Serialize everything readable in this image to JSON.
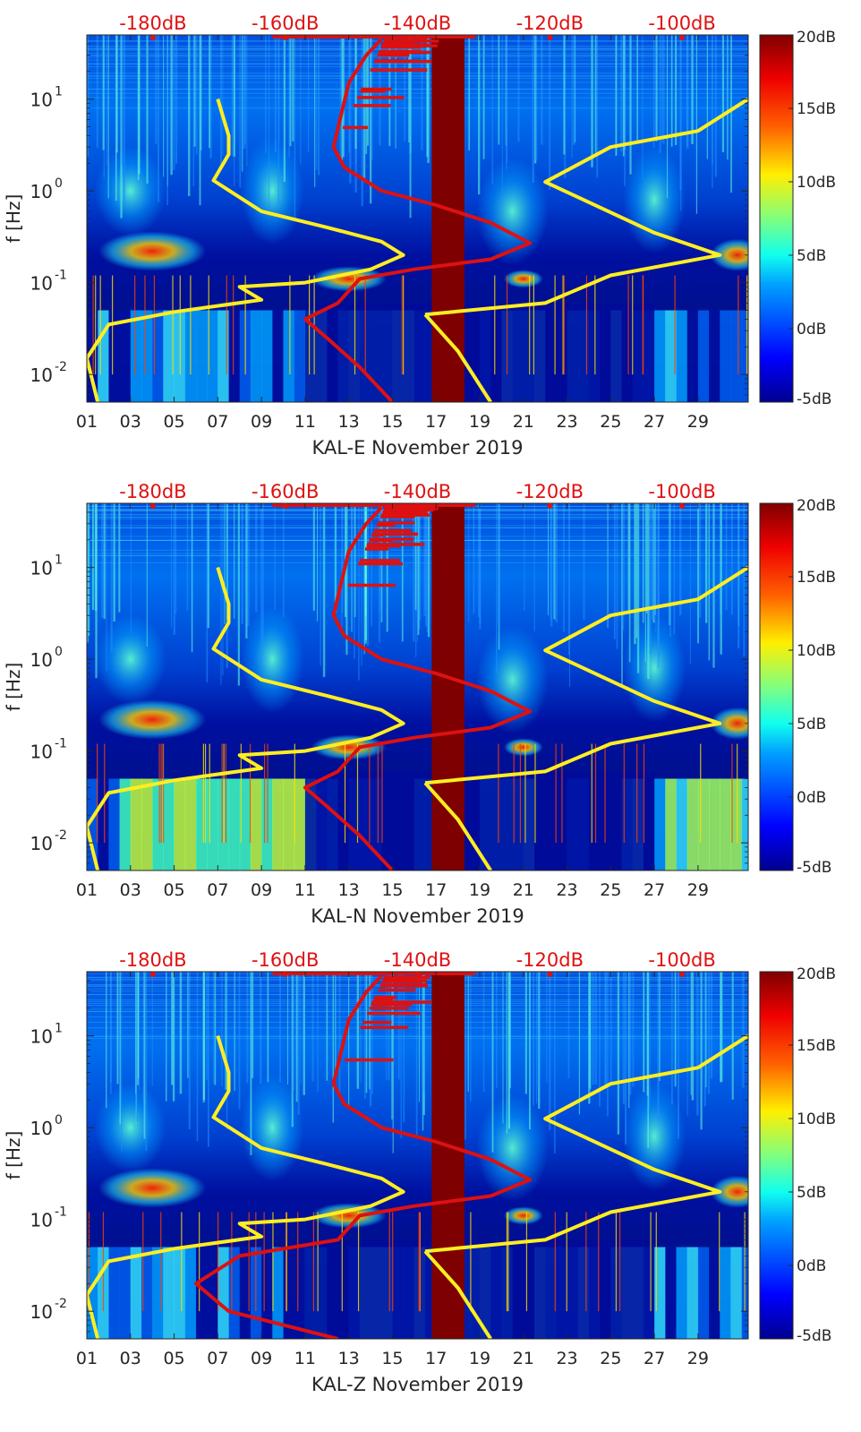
{
  "colors": {
    "red_axis": "#e01010",
    "yellow_curve": "#ffee22",
    "red_curve": "#dd1111",
    "maroon_band": "#7f0000",
    "colormap": [
      "#00008f",
      "#0000ff",
      "#00a0ff",
      "#10ffef",
      "#80ff7f",
      "#ffef00",
      "#ff6000",
      "#ef0000",
      "#800000"
    ]
  },
  "top_axis_ticks": [
    "-180dB",
    "-160dB",
    "-140dB",
    "-120dB",
    "-100dB"
  ],
  "x_ticks": [
    "01",
    "03",
    "05",
    "07",
    "09",
    "11",
    "13",
    "15",
    "17",
    "19",
    "21",
    "23",
    "25",
    "27",
    "29"
  ],
  "y_tick_bases": [
    "10",
    "10",
    "10",
    "10"
  ],
  "y_tick_exps": [
    "1",
    "0",
    "-1",
    "-2"
  ],
  "ylabel": "f [Hz]",
  "colorbar_ticks": [
    "20dB",
    "15dB",
    "10dB",
    "5dB",
    "0dB",
    "-5dB"
  ],
  "panels": [
    {
      "xlabel": "KAL-E November 2019"
    },
    {
      "xlabel": "KAL-N November 2019"
    },
    {
      "xlabel": "KAL-Z November 2019"
    }
  ],
  "chart_data": {
    "type": "heatmap",
    "description_axes": {
      "x_range_days": [
        1,
        31.3
      ],
      "y_range_hz": [
        0.005,
        50
      ],
      "y_scale": "log",
      "colorbar_range_db": [
        -5,
        20
      ],
      "top_axis_range_db": [
        -190,
        -90
      ]
    },
    "gap_band_days": [
      16.8,
      18.3
    ],
    "yellow_curve_1": [
      [
        7.0,
        10
      ],
      [
        7.5,
        4
      ],
      [
        7.5,
        2.5
      ],
      [
        6.8,
        1.3
      ],
      [
        9.0,
        0.6
      ],
      [
        12.0,
        0.4
      ],
      [
        14.5,
        0.28
      ],
      [
        15.5,
        0.2
      ],
      [
        14.0,
        0.14
      ],
      [
        11.0,
        0.1
      ],
      [
        8.0,
        0.09
      ],
      [
        9.0,
        0.065
      ],
      [
        5.0,
        0.048
      ],
      [
        2.0,
        0.035
      ],
      [
        1.0,
        0.015
      ],
      [
        1.5,
        0.005
      ]
    ],
    "yellow_curve_2": [
      [
        16.5,
        0.045
      ],
      [
        18.0,
        0.018
      ],
      [
        19.5,
        0.005
      ]
    ],
    "yellow_curve_3": [
      [
        16.5,
        0.045
      ],
      [
        22.0,
        0.06
      ],
      [
        25.0,
        0.12
      ],
      [
        30.0,
        0.2
      ],
      [
        27.0,
        0.35
      ],
      [
        22.0,
        1.25
      ],
      [
        25.0,
        3.0
      ],
      [
        29.0,
        4.5
      ],
      [
        31.3,
        10
      ]
    ],
    "red_curve": [
      [
        14.5,
        45
      ],
      [
        13.8,
        30
      ],
      [
        13.0,
        15
      ],
      [
        12.6,
        6
      ],
      [
        12.3,
        3.0
      ],
      [
        12.8,
        1.8
      ],
      [
        14.5,
        1.0
      ],
      [
        17.0,
        0.7
      ],
      [
        19.5,
        0.45
      ],
      [
        21.3,
        0.27
      ],
      [
        19.5,
        0.18
      ],
      [
        16.0,
        0.14
      ],
      [
        13.5,
        0.11
      ],
      [
        12.5,
        0.06
      ],
      [
        11.0,
        0.04
      ],
      [
        12.0,
        0.025
      ],
      [
        13.5,
        0.012
      ],
      [
        15.0,
        0.005
      ]
    ],
    "red_curve_z_low": [
      [
        12.5,
        0.06
      ],
      [
        8.0,
        0.04
      ],
      [
        6.0,
        0.02
      ],
      [
        7.5,
        0.01
      ],
      [
        12.5,
        0.005
      ]
    ]
  }
}
